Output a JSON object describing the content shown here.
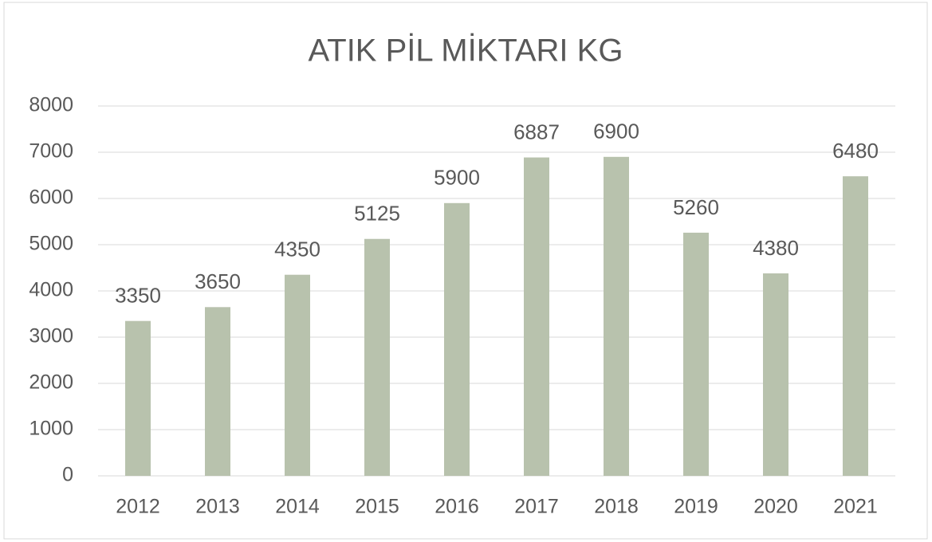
{
  "chart_data": {
    "type": "bar",
    "title": "ATIK PİL MİKTARI KG",
    "categories": [
      "2012",
      "2013",
      "2014",
      "2015",
      "2016",
      "2017",
      "2018",
      "2019",
      "2020",
      "2021"
    ],
    "values": [
      3350,
      3650,
      4350,
      5125,
      5900,
      6887,
      6900,
      5260,
      4380,
      6480
    ],
    "color": "#b8c2ad",
    "ylim": [
      0,
      8000
    ],
    "yticks": [
      0,
      1000,
      2000,
      3000,
      4000,
      5000,
      6000,
      7000,
      8000
    ],
    "grid": true
  }
}
